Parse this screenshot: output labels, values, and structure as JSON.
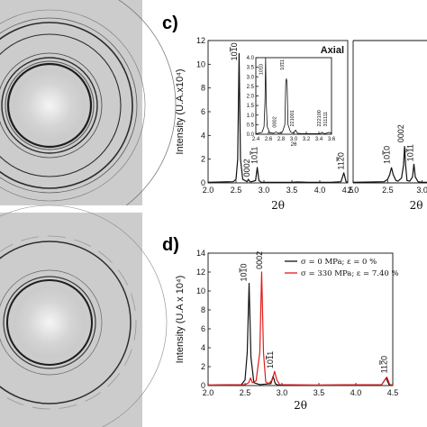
{
  "panels": {
    "c_label": "c)",
    "d_label": "d)"
  },
  "chart_data": [
    {
      "type": "line",
      "panel": "c",
      "title": "Axial",
      "xlabel": "2θ",
      "ylabel": "Intensity (U.A.x10⁴)",
      "xlim": [
        2.0,
        4.5
      ],
      "ylim": [
        0,
        12
      ],
      "xticks": [
        "2.0",
        "2.5",
        "3.0",
        "3.5",
        "4.0",
        "4.5"
      ],
      "yticks": [
        "0",
        "2",
        "4",
        "6",
        "8",
        "10",
        "12"
      ],
      "series": [
        {
          "x": [
            2.0,
            2.45,
            2.5,
            2.53,
            2.555,
            2.58,
            2.62,
            2.7,
            2.72,
            2.75,
            2.78,
            2.85,
            2.88,
            2.91,
            2.95,
            3.1,
            3.3,
            3.5,
            3.6,
            3.8,
            4.0,
            4.2,
            4.38,
            4.43,
            4.47,
            4.5
          ],
          "y": [
            0.05,
            0.1,
            0.3,
            2.0,
            10.9,
            2.0,
            0.3,
            0.1,
            0.3,
            0.1,
            0.1,
            0.2,
            1.3,
            0.2,
            0.05,
            0.05,
            0.05,
            0.05,
            0.08,
            0.05,
            0.05,
            0.05,
            0.1,
            0.85,
            0.1,
            0.05
          ]
        }
      ],
      "peak_labels": [
        {
          "text": "10$10",
          "x": 2.52,
          "y": 10.3
        },
        {
          "text": "0002",
          "x": 2.74,
          "y": 0.5
        },
        {
          "text": "10$11",
          "x": 2.88,
          "y": 1.6
        },
        {
          "text": "11$20",
          "x": 4.43,
          "y": 1.1
        }
      ],
      "inset": {
        "xlim": [
          2.4,
          3.6
        ],
        "ylim": [
          0,
          4
        ],
        "xlabel": "2θ",
        "xticks": [
          "2.4",
          "2.6",
          "2.8",
          "3.0",
          "3.2",
          "3.4",
          "3.6"
        ],
        "yticks": [
          "0.0",
          "0.5",
          "1.0",
          "1.5",
          "2.0",
          "2.5",
          "3.0",
          "3.5",
          "4.0"
        ],
        "x": [
          2.4,
          2.5,
          2.53,
          2.545,
          2.555,
          2.565,
          2.58,
          2.62,
          2.68,
          2.72,
          2.76,
          2.82,
          2.86,
          2.875,
          2.885,
          2.895,
          2.91,
          2.95,
          3.0,
          3.03,
          3.06,
          3.1,
          3.2,
          3.3,
          3.42,
          3.45,
          3.48,
          3.52,
          3.56,
          3.6
        ],
        "y": [
          0.02,
          0.1,
          0.4,
          1.7,
          4.0,
          1.7,
          0.4,
          0.08,
          0.05,
          0.12,
          0.05,
          0.1,
          0.5,
          2.75,
          2.9,
          2.7,
          0.5,
          0.12,
          0.05,
          0.22,
          0.05,
          0.04,
          0.03,
          0.03,
          0.03,
          0.1,
          0.03,
          0.05,
          0.1,
          0.04
        ],
        "peak_labels": [
          {
            "text": "10$10",
            "x": 2.505,
            "y": 3.1
          },
          {
            "text": "0002",
            "x": 2.72,
            "y": 0.35
          },
          {
            "text": "10$11",
            "x": 2.845,
            "y": 3.35
          },
          {
            "text": "221001",
            "x": 3.0,
            "y": 0.4
          },
          {
            "text": "222100",
            "x": 3.43,
            "y": 0.4
          },
          {
            "text": "311111",
            "x": 3.53,
            "y": 0.4
          }
        ]
      }
    },
    {
      "type": "line",
      "panel": "c-right",
      "xlabel": "2θ",
      "xlim": [
        2.0,
        3.2
      ],
      "xticks": [
        "2.0",
        "2.5",
        "3.0"
      ],
      "series": [
        {
          "x": [
            2.0,
            2.45,
            2.5,
            2.53,
            2.555,
            2.58,
            2.62,
            2.65,
            2.7,
            2.73,
            2.745,
            2.76,
            2.78,
            2.82,
            2.86,
            2.88,
            2.9,
            2.94,
            3.0,
            3.2
          ],
          "y": [
            0.05,
            0.1,
            0.3,
            0.7,
            1.3,
            0.7,
            0.2,
            0.15,
            0.4,
            1.5,
            3.1,
            1.5,
            0.2,
            0.15,
            0.5,
            1.6,
            0.5,
            0.1,
            0.05,
            0.05
          ]
        }
      ],
      "peak_labels": [
        {
          "text": "10$10",
          "x": 2.53,
          "y": 1.6
        },
        {
          "text": "0002",
          "x": 2.73,
          "y": 3.4
        },
        {
          "text": "10$11",
          "x": 2.87,
          "y": 1.8
        }
      ]
    },
    {
      "type": "line",
      "panel": "d",
      "xlabel": "2θ",
      "ylabel": "Intensity (U.A x 10⁴)",
      "xlim": [
        2.0,
        4.5
      ],
      "ylim": [
        0,
        14
      ],
      "xticks": [
        "2.0",
        "2.5",
        "3.0",
        "3.5",
        "4.0",
        "4.5"
      ],
      "yticks": [
        "0",
        "2",
        "4",
        "6",
        "8",
        "10",
        "12",
        "14"
      ],
      "legend": "top-right",
      "series": [
        {
          "name": "σ = 0 MPa; ε = 0 %",
          "color": "#111111",
          "x": [
            2.0,
            2.45,
            2.5,
            2.53,
            2.555,
            2.58,
            2.62,
            2.7,
            2.85,
            2.88,
            2.91,
            2.95,
            3.5,
            4.35,
            4.41,
            4.45,
            4.5
          ],
          "y": [
            0.05,
            0.1,
            0.6,
            3.5,
            10.8,
            3.0,
            0.3,
            0.1,
            0.2,
            1.0,
            0.2,
            0.05,
            0.05,
            0.1,
            0.8,
            0.1,
            0.05
          ]
        },
        {
          "name": "σ = 330 MPa; ε = 7.40 %",
          "color": "#e21a1a",
          "x": [
            2.0,
            2.5,
            2.55,
            2.575,
            2.6,
            2.65,
            2.7,
            2.725,
            2.75,
            2.78,
            2.82,
            2.87,
            2.9,
            2.93,
            2.97,
            3.5,
            4.35,
            4.42,
            4.46,
            4.5
          ],
          "y": [
            0.05,
            0.1,
            0.3,
            0.8,
            0.3,
            0.5,
            3.5,
            12.0,
            3.5,
            0.4,
            0.2,
            0.6,
            1.5,
            0.6,
            0.1,
            0.05,
            0.1,
            0.9,
            0.1,
            0.05
          ]
        }
      ],
      "peak_labels": [
        {
          "text": "10$10",
          "x": 2.52,
          "y": 11.0
        },
        {
          "text": "0002",
          "x": 2.73,
          "y": 12.3
        },
        {
          "text": "10$11",
          "x": 2.88,
          "y": 1.8
        },
        {
          "text": "11$20",
          "x": 4.42,
          "y": 1.3
        }
      ]
    }
  ],
  "colors": {
    "axis": "#111111",
    "pattern_bg": "#c9c9c9",
    "ring": "#1e1e1e",
    "ring_light": "#e6e6e6",
    "series_black": "#111111",
    "series_red": "#e21a1a"
  }
}
